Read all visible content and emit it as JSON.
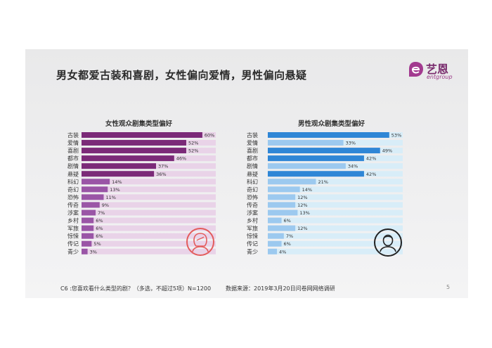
{
  "slide": {
    "title": "男女都爱古装和喜剧，女性偏向爱情，男性偏向悬疑",
    "logo_text": "艺恩",
    "logo_sub": "entgroup",
    "footer_question": "C6 :您喜欢看什么类型的剧？（多选，不超过5项）N=1200",
    "footer_source": "数据来源：2019年3月20日问卷网网络调研",
    "page_number": "5"
  },
  "colors": {
    "female_dark": "#7b2a78",
    "female_mid": "#9a55a6",
    "female_track": "#e9d3e8",
    "male_dark": "#2f86d6",
    "male_light": "#9cc9ef",
    "male_track": "#d8edf8"
  },
  "icons": {
    "female": "female-avatar-icon",
    "male": "male-avatar-icon"
  },
  "chart_data": [
    {
      "type": "bar",
      "orientation": "horizontal",
      "title": "女性观众剧集类型偏好",
      "categories": [
        "古装",
        "爱情",
        "喜剧",
        "都市",
        "剧情",
        "悬疑",
        "科幻",
        "奇幻",
        "恐怖",
        "传奇",
        "涉案",
        "乡村",
        "军旅",
        "惊悚",
        "传记",
        "青少"
      ],
      "values": [
        60,
        52,
        52,
        46,
        37,
        36,
        14,
        13,
        11,
        9,
        7,
        6,
        6,
        6,
        5,
        3
      ],
      "value_labels": [
        "60%",
        "52%",
        "52%",
        "46%",
        "37%",
        "36%",
        "14%",
        "13%",
        "11%",
        "9%",
        "7%",
        "6%",
        "6%",
        "6%",
        "5%",
        "3%"
      ],
      "unit": "%",
      "xlim": [
        0,
        70
      ]
    },
    {
      "type": "bar",
      "orientation": "horizontal",
      "title": "男性观众剧集类型偏好",
      "categories": [
        "古装",
        "爱情",
        "喜剧",
        "都市",
        "剧情",
        "悬疑",
        "科幻",
        "奇幻",
        "恐怖",
        "传奇",
        "涉案",
        "乡村",
        "军旅",
        "惊悚",
        "传记",
        "青少"
      ],
      "values": [
        53,
        33,
        49,
        42,
        34,
        42,
        21,
        14,
        12,
        12,
        13,
        6,
        12,
        7,
        6,
        4
      ],
      "value_labels": [
        "53%",
        "33%",
        "49%",
        "42%",
        "34%",
        "42%",
        "21%",
        "14%",
        "12%",
        "12%",
        "13%",
        "6%",
        "12%",
        "7%",
        "6%",
        "4%"
      ],
      "unit": "%",
      "xlim": [
        0,
        70
      ]
    }
  ]
}
